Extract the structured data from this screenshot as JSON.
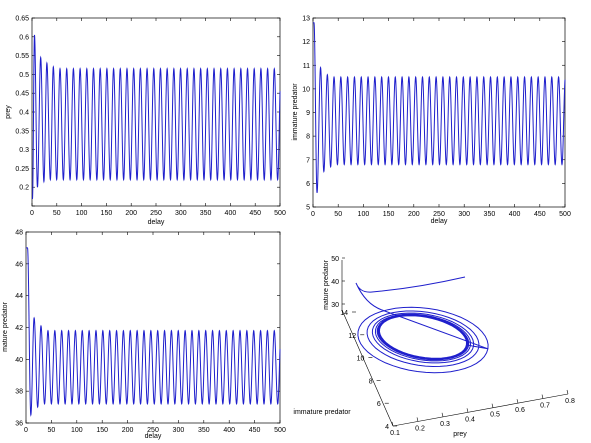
{
  "chart_data": [
    {
      "type": "line",
      "id": "prey",
      "xlabel": "delay",
      "ylabel": "prey",
      "xlim": [
        0,
        500
      ],
      "ylim": [
        0.15,
        0.65
      ],
      "xticks": [
        0,
        50,
        100,
        150,
        200,
        250,
        300,
        350,
        400,
        450,
        500
      ],
      "yticks": [
        0.15,
        0.2,
        0.25,
        0.3,
        0.35,
        0.4,
        0.45,
        0.5,
        0.55,
        0.6,
        0.65
      ],
      "ytick_labels": [
        "",
        "0.2",
        "0.25",
        "0.3",
        "0.35",
        "0.4",
        "0.45",
        "0.5",
        "0.55",
        "0.6",
        "0.65"
      ],
      "series": [
        {
          "period": 13.5,
          "steady_min": 0.22,
          "steady_max": 0.515,
          "peaks": [
            [
              5,
              0.605
            ],
            [
              17.5,
              0.545
            ],
            [
              30,
              0.53
            ],
            [
              43,
              0.52
            ]
          ],
          "troughs": [
            [
              1,
              0.17
            ],
            [
              11,
              0.2
            ],
            [
              24,
              0.215
            ],
            [
              37,
              0.22
            ]
          ]
        }
      ]
    },
    {
      "type": "line",
      "id": "immature",
      "xlabel": "delay",
      "ylabel": "immature predator",
      "xlim": [
        0,
        500
      ],
      "ylim": [
        5,
        13
      ],
      "xticks": [
        0,
        50,
        100,
        150,
        200,
        250,
        300,
        350,
        400,
        450,
        500
      ],
      "yticks": [
        5,
        6,
        7,
        8,
        9,
        10,
        11,
        12,
        13
      ],
      "ytick_labels": [
        "5",
        "6",
        "7",
        "8",
        "9",
        "10",
        "11",
        "12",
        "13"
      ],
      "series": [
        {
          "period": 13.5,
          "steady_min": 6.8,
          "steady_max": 10.5,
          "peaks": [
            [
              2,
              12.8
            ],
            [
              15,
              10.9
            ],
            [
              28.5,
              10.6
            ]
          ],
          "troughs": [
            [
              8,
              5.6
            ],
            [
              21.5,
              6.5
            ],
            [
              35,
              6.7
            ]
          ]
        }
      ]
    },
    {
      "type": "line",
      "id": "mature",
      "xlabel": "delay",
      "ylabel": "mature predator",
      "xlim": [
        0,
        500
      ],
      "ylim": [
        36,
        48
      ],
      "xticks": [
        0,
        50,
        100,
        150,
        200,
        250,
        300,
        350,
        400,
        450,
        500
      ],
      "yticks": [
        36,
        38,
        40,
        42,
        44,
        46,
        48
      ],
      "ytick_labels": [
        "36",
        "38",
        "40",
        "42",
        "44",
        "46",
        "48"
      ],
      "series": [
        {
          "period": 13.5,
          "steady_min": 37.2,
          "steady_max": 41.8,
          "peaks": [
            [
              3,
              47
            ],
            [
              16,
              42.6
            ],
            [
              29.5,
              42.1
            ]
          ],
          "troughs": [
            [
              9.5,
              36.5
            ],
            [
              23,
              37
            ],
            [
              36.5,
              37.2
            ]
          ]
        }
      ]
    },
    {
      "type": "line",
      "id": "phase3d",
      "projection": "3d",
      "xlabel": "prey",
      "ylabel": "immature predator",
      "zlabel": "mature predator",
      "xticks": [
        "0.1",
        "0.2",
        "0.3",
        "0.4",
        "0.5",
        "0.6",
        "0.7",
        "0.8"
      ],
      "yticks": [
        "4",
        "6",
        "8",
        "10",
        "12",
        "14"
      ],
      "zticks": [
        "30",
        "40",
        "50"
      ],
      "trajectory_start": {
        "prey": 0.8,
        "immature predator": 13,
        "mature predator": 47
      },
      "limit_cycle": {
        "prey": [
          0.22,
          0.515
        ],
        "immature predator": [
          6.8,
          10.5
        ],
        "mature predator": [
          37.2,
          41.8
        ]
      }
    }
  ]
}
